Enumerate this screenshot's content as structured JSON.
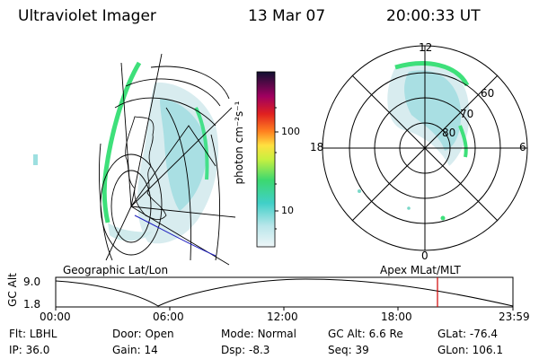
{
  "header": {
    "title": "Ultraviolet Imager",
    "date": "13 Mar 07",
    "time": "20:00:33 UT"
  },
  "colorbar": {
    "unit_label": "photon cm⁻²s⁻¹",
    "ticks": [
      "100",
      "10"
    ]
  },
  "polar": {
    "mlt_labels": [
      "12",
      "18",
      "6",
      "0"
    ],
    "lat_labels": [
      "60",
      "70",
      "80"
    ]
  },
  "panel_labels": {
    "left": "Geographic Lat/Lon",
    "right": "Apex MLat/MLT"
  },
  "altitude_plot": {
    "ylabel": "GC Alt",
    "yticks": [
      "9.0",
      "1.8"
    ],
    "xticks": [
      "00:00",
      "06:00",
      "12:00",
      "18:00",
      "23:59"
    ],
    "current_time_marker": "20:00"
  },
  "info": {
    "row1": [
      {
        "label": "Flt:",
        "value": "LBHL"
      },
      {
        "label": "Door:",
        "value": "Open"
      },
      {
        "label": "Mode:",
        "value": "Normal"
      },
      {
        "label": "GC Alt:",
        "value": "6.6 Re"
      },
      {
        "label": "GLat:",
        "value": "-76.4"
      }
    ],
    "row2": [
      {
        "label": "IP:",
        "value": "36.0"
      },
      {
        "label": "Gain:",
        "value": "14"
      },
      {
        "label": "Dsp:",
        "value": "-8.3"
      },
      {
        "label": "Seq:",
        "value": "39"
      },
      {
        "label": "GLon:",
        "value": "106.1"
      }
    ]
  },
  "colors": {
    "emission_light": "#d8ecef",
    "emission_mid": "#9ddfe0",
    "emission_green": "#3ee07a",
    "marker_red": "#d00000",
    "line_blue": "#2020c0"
  }
}
